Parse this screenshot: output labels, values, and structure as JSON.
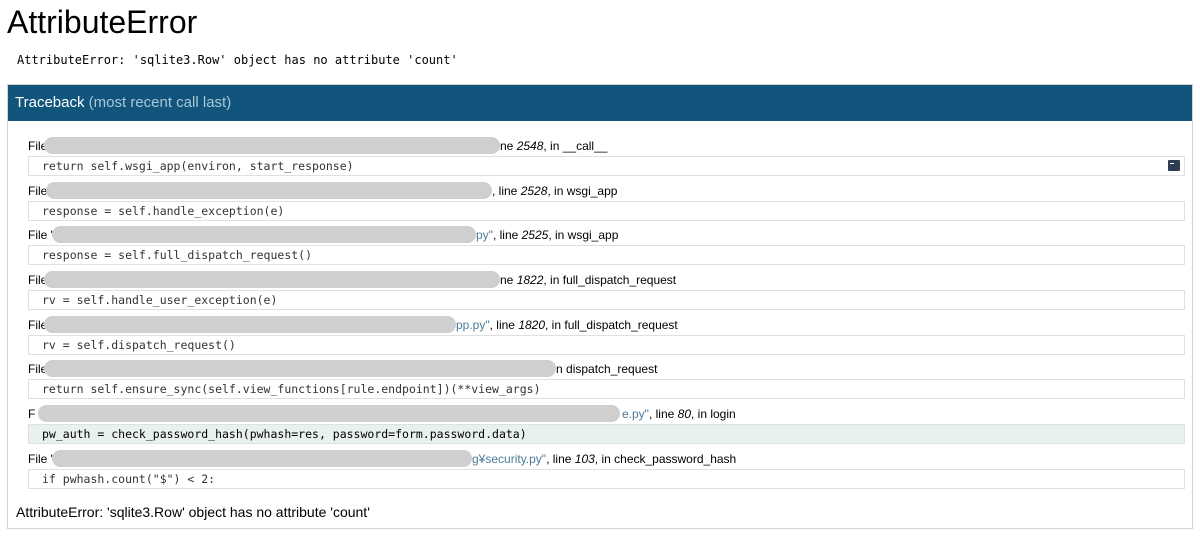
{
  "title": "AttributeError",
  "error_message": "AttributeError: 'sqlite3.Row' object has no attribute 'count'",
  "traceback": {
    "header": "Traceback",
    "header_hint": "(most recent call last)",
    "frames": [
      {
        "pre": "File",
        "path": "",
        "line_word": "ne ",
        "line": "2548",
        "in_word": ", in ",
        "func": "__call__",
        "code": "return self.wsgi_app(environ, start_response)",
        "current": false,
        "console": true
      },
      {
        "pre": "File",
        "path": "",
        "line_word": ", line ",
        "line": "2528",
        "in_word": ", in ",
        "func": "wsgi_app",
        "code": "response = self.handle_exception(e)",
        "current": false,
        "console": false
      },
      {
        "pre": "File \"",
        "path": "py\"",
        "line_word": ", line ",
        "line": "2525",
        "in_word": ", in ",
        "func": "wsgi_app",
        "code": "response = self.full_dispatch_request()",
        "current": false,
        "console": false
      },
      {
        "pre": "File",
        "path": "",
        "line_word": "ne ",
        "line": "1822",
        "in_word": ", in ",
        "func": "full_dispatch_request",
        "code": "rv = self.handle_user_exception(e)",
        "current": false,
        "console": false
      },
      {
        "pre": "File",
        "path": "pp.py\"",
        "line_word": ", line ",
        "line": "1820",
        "in_word": ", in ",
        "func": "full_dispatch_request",
        "code": "rv = self.dispatch_request()",
        "current": false,
        "console": false
      },
      {
        "pre": "File",
        "path": "",
        "line_word": "n ",
        "line": "",
        "in_word": "",
        "func": "dispatch_request",
        "code": "return self.ensure_sync(self.view_functions[rule.endpoint])(**view_args)",
        "current": false,
        "console": false
      },
      {
        "pre": "F",
        "path": "e.py\"",
        "line_word": ", line ",
        "line": "80",
        "in_word": ", in ",
        "func": "login",
        "code": "pw_auth = check_password_hash(pwhash=res, password=form.password.data)",
        "current": true,
        "console": false
      },
      {
        "pre": "File \"",
        "path": "g¥security.py\"",
        "line_word": ", line ",
        "line": "103",
        "in_word": ", in ",
        "func": "check_password_hash",
        "code": "if pwhash.count(\"$\") < 2:",
        "current": false,
        "console": false
      }
    ]
  },
  "final_error": "AttributeError: 'sqlite3.Row' object has no attribute 'count'",
  "colors": {
    "header_bg": "#11557c",
    "current_line_bg": "#e8f0f0",
    "path": "#4a7a99"
  }
}
